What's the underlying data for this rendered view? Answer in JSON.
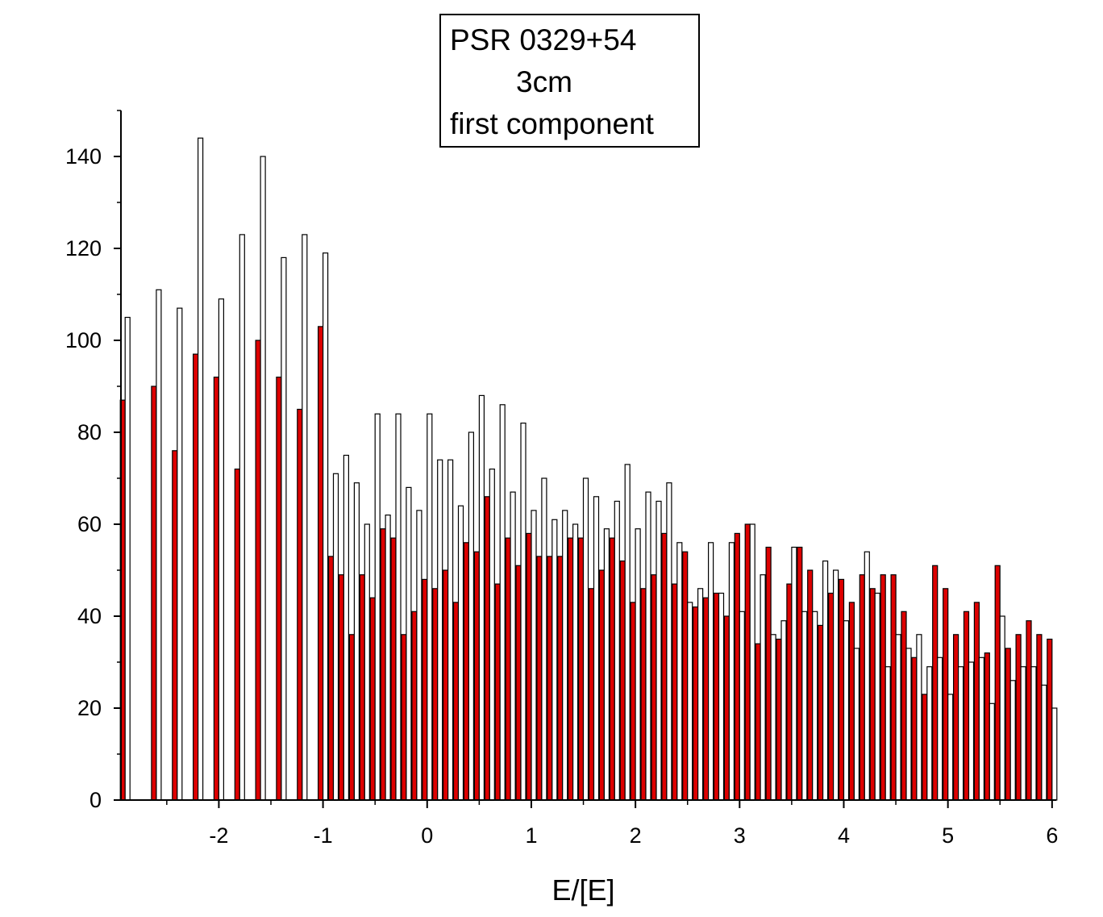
{
  "chart_data": {
    "type": "bar",
    "title_lines": [
      "PSR 0329+54",
      "3cm",
      "first component"
    ],
    "xlabel": "E/[E]",
    "ylabel": "",
    "xlim": [
      -2.94,
      6.04
    ],
    "ylim": [
      0,
      150
    ],
    "x_ticks": [
      -2,
      -1,
      0,
      1,
      2,
      3,
      4,
      5,
      6
    ],
    "y_ticks": [
      0,
      20,
      40,
      60,
      80,
      100,
      120,
      140
    ],
    "grid": false,
    "legend": "top-center",
    "series_colors": [
      "#dd0000",
      "#ffffff"
    ],
    "series": [
      {
        "x": [
          -2.9,
          -2.6,
          -2.4,
          -2.2,
          -2.0,
          -1.8,
          -1.6,
          -1.4,
          -1.2,
          -1.0,
          -0.9,
          -0.8,
          -0.7,
          -0.6,
          -0.5,
          -0.4,
          -0.3,
          -0.2,
          -0.1,
          0.0,
          0.1,
          0.2,
          0.3,
          0.4,
          0.5,
          0.6,
          0.7,
          0.8,
          0.9,
          1.0,
          1.1,
          1.2,
          1.3,
          1.4,
          1.5,
          1.6,
          1.7,
          1.8,
          1.9,
          2.0,
          2.1,
          2.2,
          2.3,
          2.4,
          2.5,
          2.6,
          2.7,
          2.8,
          2.9,
          3.0,
          3.1,
          3.2,
          3.3,
          3.4,
          3.5,
          3.6,
          3.7,
          3.8,
          3.9,
          4.0,
          4.1,
          4.2,
          4.3,
          4.4,
          4.5,
          4.6,
          4.7,
          4.8,
          4.9,
          5.0,
          5.1,
          5.2,
          5.3,
          5.4,
          5.5,
          5.6,
          5.7,
          5.8,
          5.9,
          6.0
        ],
        "values": [
          87,
          90,
          76,
          97,
          92,
          72,
          100,
          92,
          85,
          103,
          53,
          49,
          36,
          49,
          44,
          59,
          57,
          36,
          41,
          48,
          46,
          50,
          43,
          56,
          54,
          66,
          47,
          57,
          51,
          58,
          53,
          53,
          53,
          57,
          57,
          46,
          50,
          57,
          52,
          43,
          46,
          49,
          58,
          47,
          54,
          42,
          44,
          45,
          40,
          58,
          60,
          34,
          55,
          35,
          47,
          55,
          50,
          38,
          45,
          48,
          43,
          49,
          46,
          49,
          49,
          41,
          31,
          23,
          51,
          46,
          36,
          41,
          43,
          32,
          51,
          33,
          36,
          39,
          36,
          35
        ]
      },
      {
        "x": [
          -2.9,
          -2.6,
          -2.4,
          -2.2,
          -2.0,
          -1.8,
          -1.6,
          -1.4,
          -1.2,
          -1.0,
          -0.9,
          -0.8,
          -0.7,
          -0.6,
          -0.5,
          -0.4,
          -0.3,
          -0.2,
          -0.1,
          0.0,
          0.1,
          0.2,
          0.3,
          0.4,
          0.5,
          0.6,
          0.7,
          0.8,
          0.9,
          1.0,
          1.1,
          1.2,
          1.3,
          1.4,
          1.5,
          1.6,
          1.7,
          1.8,
          1.9,
          2.0,
          2.1,
          2.2,
          2.3,
          2.4,
          2.5,
          2.6,
          2.7,
          2.8,
          2.9,
          3.0,
          3.1,
          3.2,
          3.3,
          3.4,
          3.5,
          3.6,
          3.7,
          3.8,
          3.9,
          4.0,
          4.1,
          4.2,
          4.3,
          4.4,
          4.5,
          4.6,
          4.7,
          4.8,
          4.9,
          5.0,
          5.1,
          5.2,
          5.3,
          5.4,
          5.5,
          5.6,
          5.7,
          5.8,
          5.9,
          6.0
        ],
        "values": [
          105,
          111,
          107,
          144,
          109,
          123,
          140,
          118,
          123,
          119,
          71,
          75,
          69,
          60,
          84,
          62,
          84,
          68,
          63,
          84,
          74,
          74,
          64,
          80,
          88,
          72,
          86,
          67,
          82,
          63,
          70,
          61,
          63,
          60,
          70,
          66,
          59,
          65,
          73,
          59,
          67,
          65,
          69,
          56,
          43,
          46,
          56,
          45,
          56,
          41,
          60,
          49,
          36,
          39,
          55,
          41,
          41,
          52,
          50,
          39,
          33,
          54,
          45,
          29,
          36,
          33,
          36,
          29,
          31,
          23,
          29,
          30,
          31,
          21,
          40,
          26,
          29,
          29,
          25,
          20
        ]
      }
    ]
  }
}
